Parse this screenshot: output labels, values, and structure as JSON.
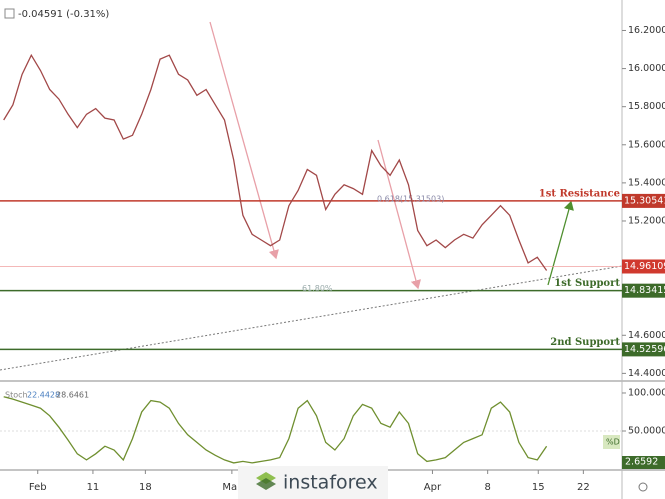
{
  "header": {
    "change": "-0.04591 (-0.31%)"
  },
  "logo": "instaforex",
  "chart_data": [
    {
      "type": "line",
      "x": [
        0,
        1,
        2,
        3,
        4,
        5,
        6,
        7,
        8,
        9,
        10,
        11,
        12,
        13,
        14,
        15,
        16,
        17,
        18,
        19,
        20,
        21,
        22,
        23,
        24,
        25,
        26,
        27,
        28,
        29,
        30,
        31,
        32,
        33,
        34,
        35,
        36,
        37,
        38,
        39,
        40,
        41,
        42,
        43,
        44,
        45,
        46,
        47,
        48,
        49,
        50,
        51,
        52,
        53,
        54,
        55,
        56,
        57,
        58,
        59
      ],
      "series": [
        {
          "color": "#a24848",
          "values": [
            15.73,
            15.81,
            15.97,
            16.07,
            15.99,
            15.89,
            15.84,
            15.76,
            15.69,
            15.76,
            15.79,
            15.74,
            15.73,
            15.63,
            15.65,
            15.76,
            15.89,
            16.05,
            16.07,
            15.97,
            15.94,
            15.86,
            15.89,
            15.81,
            15.73,
            15.52,
            15.23,
            15.13,
            15.1,
            15.07,
            15.1,
            15.28,
            15.36,
            15.47,
            15.44,
            15.26,
            15.34,
            15.39,
            15.37,
            15.34,
            15.57,
            15.49,
            15.44,
            15.52,
            15.39,
            15.15,
            15.07,
            15.1,
            15.06,
            15.1,
            15.13,
            15.11,
            15.18,
            15.23,
            15.28,
            15.23,
            15.1,
            14.98,
            15.01,
            14.94
          ]
        }
      ],
      "xlim": [
        -0.4,
        67.2
      ],
      "ylim": [
        14.36,
        16.36
      ],
      "yticks": [
        {
          "value": 16.2,
          "label": "16.20000"
        },
        {
          "value": 16.0,
          "label": "16.00000"
        },
        {
          "value": 15.8,
          "label": "15.80000"
        },
        {
          "value": 15.6,
          "label": "15.60000"
        },
        {
          "value": 15.4,
          "label": "15.40000"
        },
        {
          "value": 15.2,
          "label": "15.20000"
        },
        {
          "value": 14.6,
          "label": "14.60000"
        },
        {
          "value": 14.4,
          "label": "14.40000"
        }
      ],
      "grid": false,
      "levels": [
        {
          "name": "1st Resistance",
          "value": 15.30541,
          "color": "#c0392b"
        },
        {
          "name": "1st Support",
          "value": 14.83415,
          "color": "#3d6b2a"
        },
        {
          "name": "2nd Support",
          "value": 14.52596,
          "color": "#3d6b2a"
        }
      ],
      "current_price": 14.96109,
      "current_color": "#d0392e",
      "fib_label": "0.618(15.31503)",
      "fib_percent": "61.80%"
    },
    {
      "type": "line",
      "indicator": "Stoch",
      "readings": [
        22.4428,
        28.6461
      ],
      "x": [
        0,
        1,
        2,
        3,
        4,
        5,
        6,
        7,
        8,
        9,
        10,
        11,
        12,
        13,
        14,
        15,
        16,
        17,
        18,
        19,
        20,
        21,
        22,
        23,
        24,
        25,
        26,
        27,
        28,
        29,
        30,
        31,
        32,
        33,
        34,
        35,
        36,
        37,
        38,
        39,
        40,
        41,
        42,
        43,
        44,
        45,
        46,
        47,
        48,
        49,
        50,
        51,
        52,
        53,
        54,
        55,
        56,
        57,
        58,
        59
      ],
      "series": [
        {
          "color": "#6f8f2f",
          "values": [
            95,
            92,
            88,
            84,
            80,
            70,
            55,
            38,
            20,
            12,
            20,
            30,
            25,
            12,
            40,
            75,
            90,
            88,
            80,
            60,
            45,
            35,
            25,
            18,
            12,
            8,
            10,
            8,
            10,
            12,
            15,
            40,
            80,
            90,
            70,
            35,
            25,
            40,
            70,
            85,
            80,
            60,
            55,
            75,
            60,
            20,
            10,
            12,
            15,
            25,
            35,
            40,
            45,
            80,
            88,
            75,
            35,
            15,
            12,
            30
          ]
        }
      ],
      "xlim": [
        -0.4,
        67.2
      ],
      "ylim": [
        0,
        110.5
      ],
      "yticks": [
        {
          "value": 100,
          "label": "100.0000"
        },
        {
          "value": 50,
          "label": "50.0000"
        }
      ],
      "current_value": 2.6592,
      "current_label": "%D",
      "xticks": [
        {
          "value": 3.7,
          "label": "Feb"
        },
        {
          "value": 9.7,
          "label": "11"
        },
        {
          "value": 15.4,
          "label": "18"
        },
        {
          "value": 24.8,
          "label": "Mar"
        },
        {
          "value": 46.6,
          "label": "Apr"
        },
        {
          "value": 52.6,
          "label": "8"
        },
        {
          "value": 58.1,
          "label": "15"
        },
        {
          "value": 63.0,
          "label": "22"
        }
      ]
    }
  ]
}
